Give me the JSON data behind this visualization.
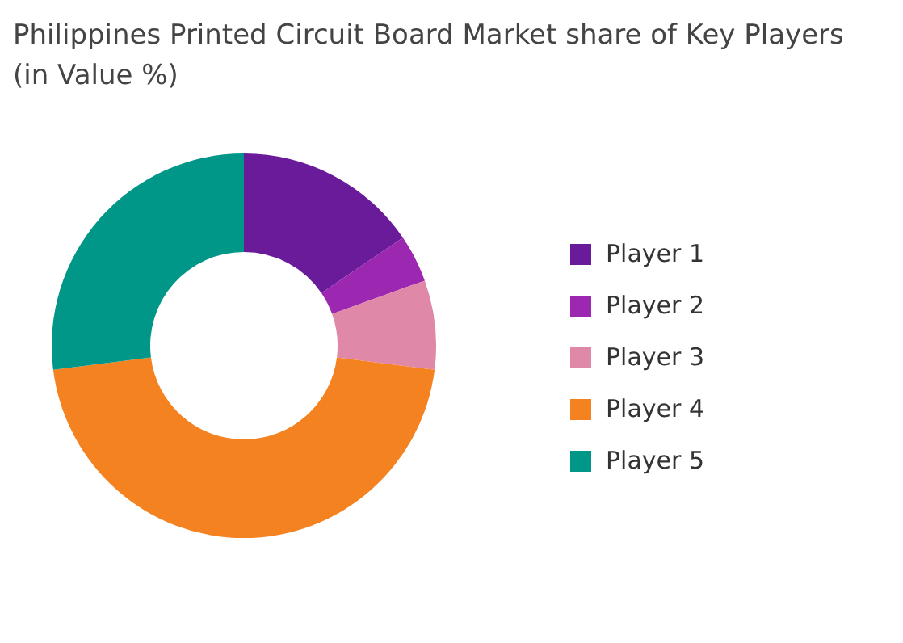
{
  "chart_data": {
    "type": "donut",
    "title": "Philippines Printed Circuit Board Market share of Key Players (in Value %)",
    "categories": [
      "Player 1",
      "Player 2",
      "Player 3",
      "Player 4",
      "Player 5"
    ],
    "values": [
      15.5,
      4,
      7.5,
      46,
      27
    ],
    "colors": [
      "#6a1b9a",
      "#9c27b0",
      "#e088a8",
      "#f58220",
      "#009688"
    ],
    "legend": "right"
  }
}
